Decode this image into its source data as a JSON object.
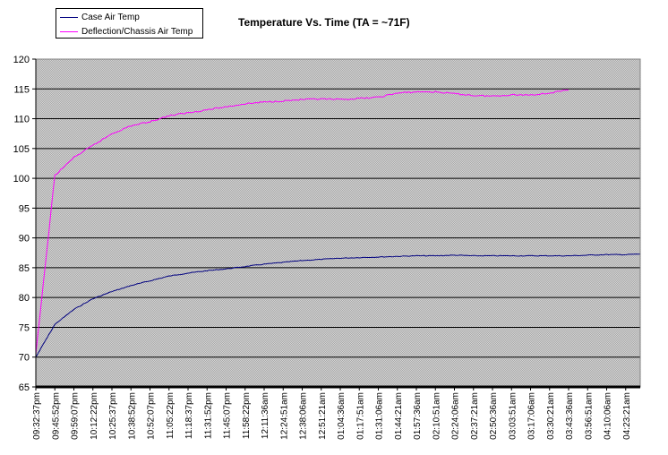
{
  "chart_data": {
    "type": "line",
    "title": "Temperature Vs. Time (TA = ~71F)",
    "xlabel": "",
    "ylabel": "",
    "ylim": [
      65,
      120
    ],
    "yticks": [
      65,
      70,
      75,
      80,
      85,
      90,
      95,
      100,
      105,
      110,
      115,
      120
    ],
    "grid": true,
    "legend_position": "top-left",
    "x_tick_labels": [
      "09:32:37pm",
      "09:45:52pm",
      "09:59:07pm",
      "10:12:22pm",
      "10:25:37pm",
      "10:38:52pm",
      "10:52:07pm",
      "11:05:22pm",
      "11:18:37pm",
      "11:31:52pm",
      "11:45:07pm",
      "11:58:22pm",
      "12:11:36am",
      "12:24:51am",
      "12:38:06am",
      "12:51:21am",
      "01:04:36am",
      "01:17:51am",
      "01:31:06am",
      "01:44:21am",
      "01:57:36am",
      "02:10:51am",
      "02:24:06am",
      "02:37:21am",
      "02:50:36am",
      "03:03:51am",
      "03:17:06am",
      "03:30:21am",
      "03:43:36am",
      "03:56:51am",
      "04:10:06am",
      "04:23:21am"
    ],
    "series": [
      {
        "name": "Case Air Temp",
        "color": "#000080",
        "x": [
          "09:32:37pm",
          "09:45:52pm",
          "09:59:07pm",
          "10:12:22pm",
          "10:25:37pm",
          "10:38:52pm",
          "10:52:07pm",
          "11:05:22pm",
          "11:18:37pm",
          "11:31:52pm",
          "11:45:07pm",
          "11:58:22pm",
          "12:11:36am",
          "12:24:51am",
          "12:38:06am",
          "12:51:21am",
          "01:04:36am",
          "01:17:51am",
          "01:31:06am",
          "01:44:21am",
          "01:57:36am",
          "02:10:51am",
          "02:24:06am",
          "02:37:21am",
          "02:50:36am",
          "03:03:51am",
          "03:17:06am",
          "03:30:21am",
          "03:43:36am",
          "03:56:51am",
          "04:10:06am",
          "04:23:21am",
          "04:35:00am"
        ],
        "values": [
          70.0,
          75.5,
          78.0,
          79.8,
          81.0,
          82.0,
          82.8,
          83.6,
          84.1,
          84.5,
          84.8,
          85.2,
          85.6,
          85.9,
          86.2,
          86.4,
          86.6,
          86.7,
          86.8,
          86.9,
          87.0,
          87.0,
          87.1,
          87.0,
          87.0,
          87.0,
          87.0,
          87.0,
          87.0,
          87.1,
          87.2,
          87.2,
          87.3
        ]
      },
      {
        "name": "Deflection/Chassis Air Temp",
        "color": "#ff00ff",
        "x": [
          "09:32:37pm",
          "09:45:52pm",
          "09:59:07pm",
          "10:12:22pm",
          "10:25:37pm",
          "10:38:52pm",
          "10:52:07pm",
          "11:05:22pm",
          "11:18:37pm",
          "11:31:52pm",
          "11:45:07pm",
          "11:58:22pm",
          "12:11:36am",
          "12:24:51am",
          "12:38:06am",
          "12:51:21am",
          "01:04:36am",
          "01:17:51am",
          "01:31:06am",
          "01:44:21am",
          "01:57:36am",
          "02:10:51am",
          "02:24:06am",
          "02:37:21am",
          "02:50:36am",
          "03:03:51am",
          "03:17:06am",
          "03:30:21am",
          "03:43:36am"
        ],
        "values": [
          70.5,
          100.5,
          103.5,
          105.5,
          107.5,
          108.8,
          109.5,
          110.5,
          111.0,
          111.5,
          112.0,
          112.5,
          112.8,
          113.0,
          113.2,
          113.3,
          113.2,
          113.4,
          113.6,
          114.3,
          114.5,
          114.5,
          114.2,
          113.9,
          113.8,
          114.0,
          114.0,
          114.3,
          114.8
        ]
      }
    ]
  }
}
